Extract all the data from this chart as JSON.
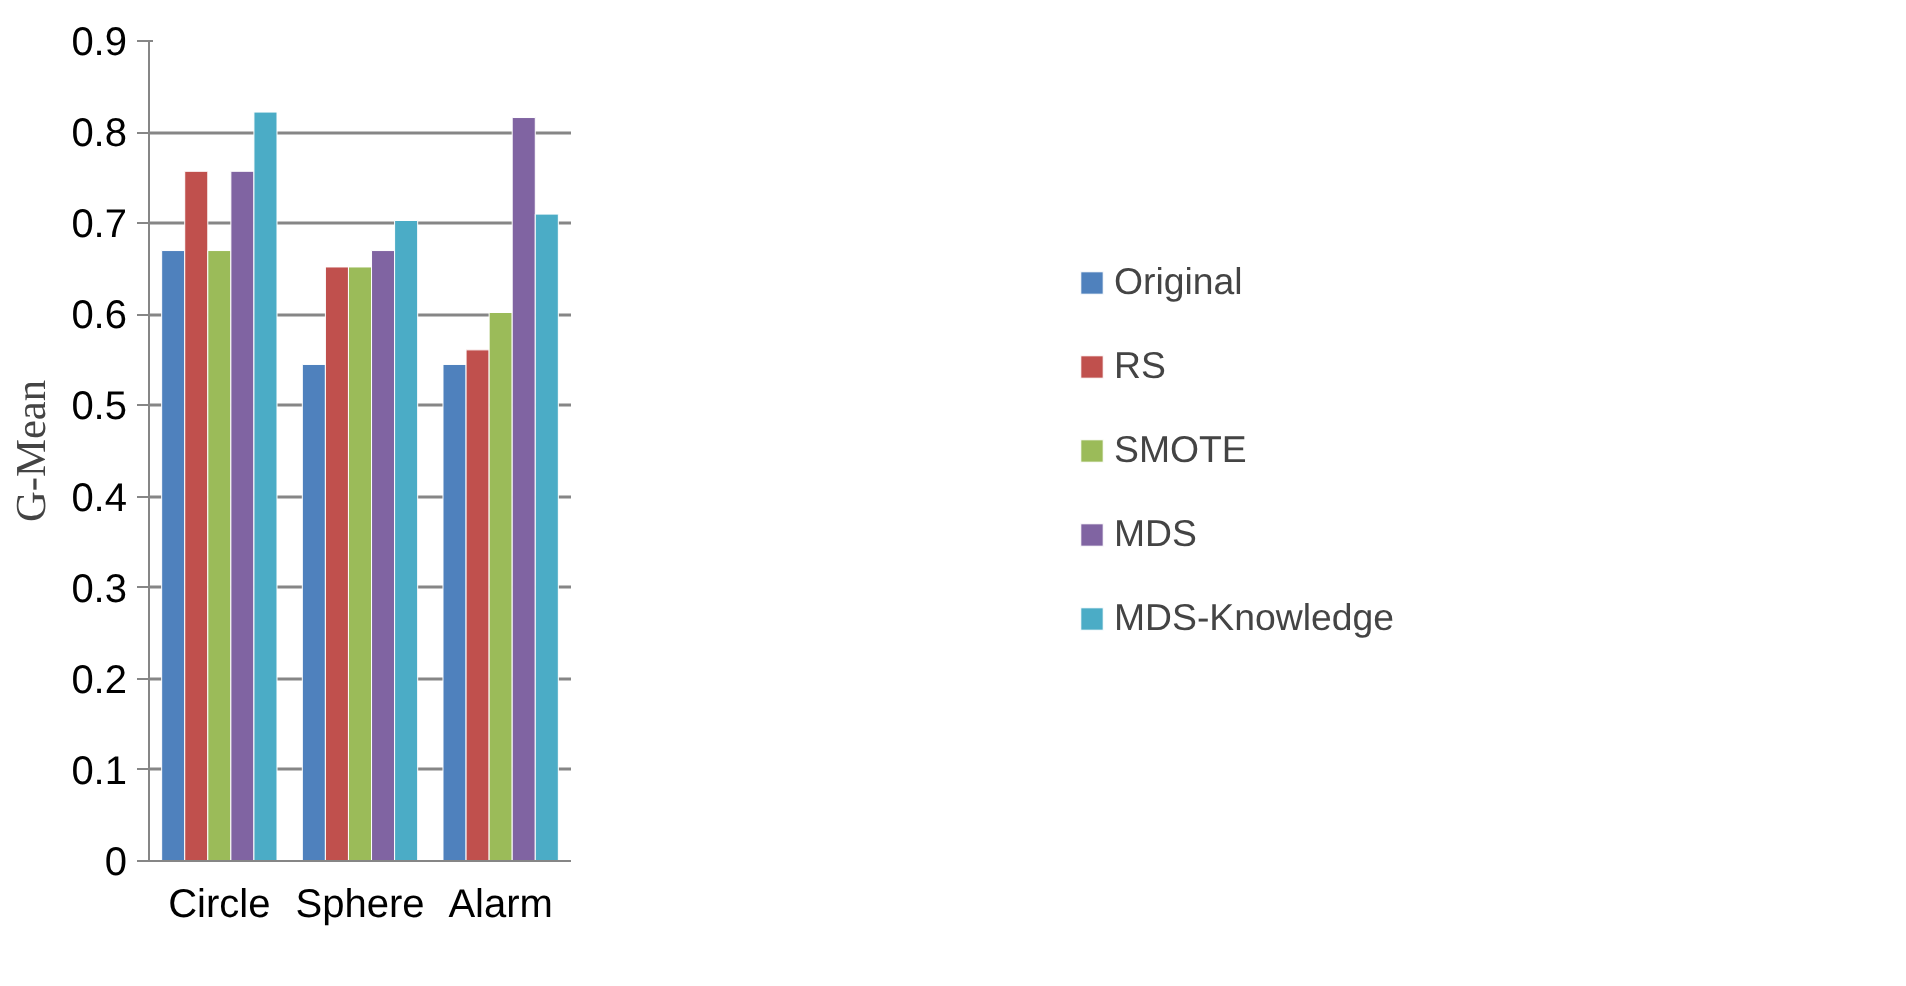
{
  "chart_data": {
    "type": "bar",
    "ylabel": "G-Mean",
    "categories": [
      "Circle",
      "Sphere",
      "Alarm"
    ],
    "series": [
      {
        "name": "Original",
        "color": "#4f81bd",
        "values": [
          0.67,
          0.545,
          0.545
        ]
      },
      {
        "name": "RS",
        "color": "#c0504d",
        "values": [
          0.757,
          0.652,
          0.561
        ]
      },
      {
        "name": "SMOTE",
        "color": "#9bbb59",
        "values": [
          0.67,
          0.652,
          0.602
        ]
      },
      {
        "name": "MDS",
        "color": "#8064a2",
        "values": [
          0.757,
          0.67,
          0.816
        ]
      },
      {
        "name": "MDS-Knowledge",
        "color": "#4bacc6",
        "values": [
          0.822,
          0.703,
          0.71
        ]
      }
    ],
    "ylim": [
      0,
      0.9
    ],
    "yticks": [
      0,
      0.1,
      0.2,
      0.3,
      0.4,
      0.5,
      0.6,
      0.7,
      0.8,
      0.9
    ],
    "grid": "y",
    "legend": "right"
  }
}
